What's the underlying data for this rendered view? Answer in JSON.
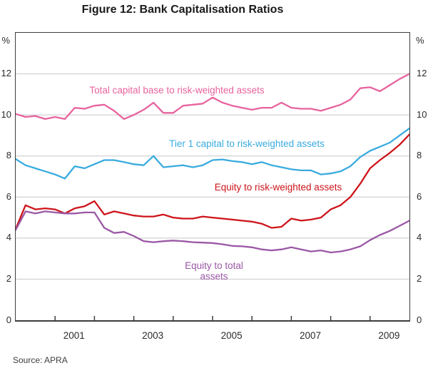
{
  "title": "Figure 12: Bank Capitalisation Ratios",
  "source": "Source: APRA",
  "axis_unit_left": "%",
  "axis_unit_right": "%",
  "colors": {
    "pink": "#e7639e",
    "blue": "#3aabdf",
    "red": "#cd141a",
    "purple": "#9a58a5",
    "gridline": "#c8c8c8",
    "axis": "#3d3d3d"
  },
  "chart_data": {
    "type": "line",
    "title": "Figure 12: Bank Capitalisation Ratios",
    "xlabel": "",
    "ylabel": "%",
    "xlim": [
      2000,
      2010
    ],
    "ylim": [
      0,
      14
    ],
    "y_tick_interval": 2,
    "y_ticks": [
      12,
      10,
      8,
      6,
      4,
      2,
      0
    ],
    "y_tick_labels": [
      "12",
      "10",
      "8",
      "6",
      "4",
      "2",
      "0"
    ],
    "x_tick_years": [
      2001,
      2002,
      2003,
      2004,
      2005,
      2006,
      2007,
      2008,
      2009
    ],
    "x_label_years": [
      2001,
      2003,
      2005,
      2007,
      2009
    ],
    "x_tick_labels": [
      "2001",
      "2003",
      "2005",
      "2007",
      "2009"
    ],
    "grid": true,
    "legend_position": "inline-annotations",
    "x_start": 2000.0,
    "x_step": 0.25,
    "series": [
      {
        "name": "Total capital base to risk-weighted assets",
        "color": "#e7639e",
        "values": [
          10.05,
          9.9,
          9.95,
          9.8,
          9.9,
          9.8,
          10.35,
          10.3,
          10.45,
          10.5,
          10.2,
          9.8,
          10.0,
          10.25,
          10.6,
          10.1,
          10.1,
          10.45,
          10.5,
          10.55,
          10.85,
          10.6,
          10.45,
          10.35,
          10.25,
          10.35,
          10.35,
          10.6,
          10.35,
          10.3,
          10.3,
          10.2,
          10.35,
          10.5,
          10.75,
          11.3,
          11.35,
          11.15,
          11.45,
          11.75,
          12.0
        ]
      },
      {
        "name": "Tier 1 capital to risk-weighted assets",
        "color": "#3aabdf",
        "values": [
          7.85,
          7.55,
          7.4,
          7.25,
          7.1,
          6.9,
          7.5,
          7.4,
          7.6,
          7.8,
          7.8,
          7.7,
          7.6,
          7.55,
          8.0,
          7.45,
          7.5,
          7.55,
          7.45,
          7.55,
          7.8,
          7.83,
          7.75,
          7.7,
          7.6,
          7.7,
          7.55,
          7.45,
          7.35,
          7.3,
          7.3,
          7.1,
          7.15,
          7.25,
          7.5,
          7.95,
          8.25,
          8.45,
          8.65,
          9.0,
          9.35
        ]
      },
      {
        "name": "Equity to risk-weighted assets",
        "color": "#cd141a",
        "values": [
          4.45,
          5.6,
          5.4,
          5.45,
          5.4,
          5.2,
          5.45,
          5.55,
          5.8,
          5.15,
          5.3,
          5.2,
          5.1,
          5.05,
          5.05,
          5.15,
          5.0,
          4.95,
          4.95,
          5.05,
          5.0,
          4.95,
          4.9,
          4.85,
          4.8,
          4.7,
          4.5,
          4.55,
          4.95,
          4.85,
          4.9,
          5.0,
          5.4,
          5.6,
          6.0,
          6.65,
          7.4,
          7.8,
          8.15,
          8.55,
          9.05
        ]
      },
      {
        "name": "Equity to total assets",
        "color": "#9a58a5",
        "values": [
          4.4,
          5.3,
          5.2,
          5.3,
          5.25,
          5.2,
          5.2,
          5.25,
          5.25,
          4.5,
          4.25,
          4.3,
          4.1,
          3.85,
          3.8,
          3.85,
          3.88,
          3.85,
          3.8,
          3.78,
          3.76,
          3.7,
          3.62,
          3.6,
          3.55,
          3.45,
          3.4,
          3.45,
          3.55,
          3.45,
          3.35,
          3.4,
          3.3,
          3.35,
          3.45,
          3.6,
          3.9,
          4.15,
          4.35,
          4.6,
          4.85
        ]
      }
    ]
  }
}
